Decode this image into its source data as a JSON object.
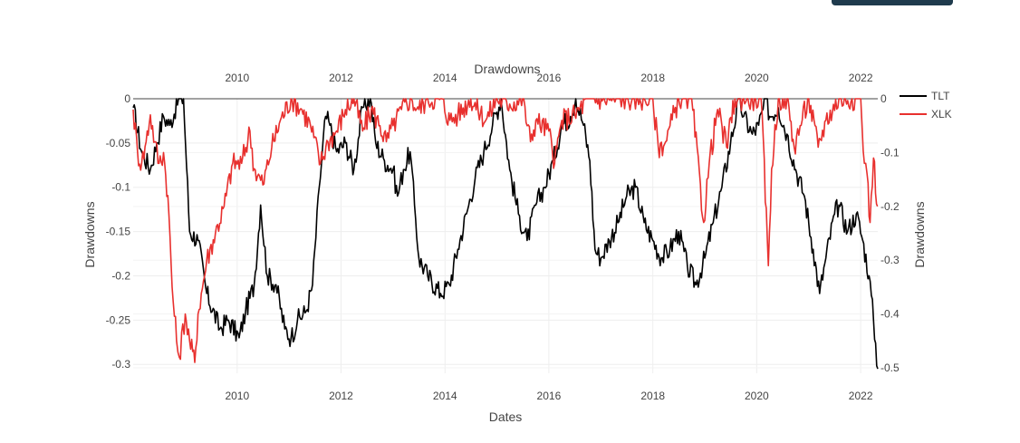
{
  "top_button": {
    "label": ""
  },
  "chart_data": {
    "type": "line",
    "title": "Drawdowns",
    "xlabel": "Dates",
    "ylabel_left": "Drawdowns",
    "ylabel_right": "Drawdowns",
    "xlim": [
      "2008-01-01",
      "2022-05-01"
    ],
    "ylim_left": [
      -0.31,
      0
    ],
    "ylim_right": [
      -0.51,
      0
    ],
    "x_ticks": [
      "2010",
      "2012",
      "2014",
      "2016",
      "2018",
      "2020",
      "2022"
    ],
    "x_tick_dates": [
      "2010-01-01",
      "2012-01-01",
      "2014-01-01",
      "2016-01-01",
      "2018-01-01",
      "2020-01-01",
      "2022-01-01"
    ],
    "y_left_ticks": [
      "0",
      "-0.05",
      "-0.1",
      "-0.15",
      "-0.2",
      "-0.25",
      "-0.3"
    ],
    "y_left_values": [
      0,
      -0.05,
      -0.1,
      -0.15,
      -0.2,
      -0.25,
      -0.3
    ],
    "y_right_ticks": [
      "0",
      "-0.1",
      "-0.2",
      "-0.3",
      "-0.4",
      "-0.5"
    ],
    "y_right_values": [
      0,
      -0.1,
      -0.2,
      -0.3,
      -0.4,
      -0.5
    ],
    "grid": true,
    "legend_position": "top-right",
    "series": [
      {
        "name": "TLT",
        "color": "#000000",
        "axis": "left",
        "x": [
          "2008-01-01",
          "2008-03-01",
          "2008-05-01",
          "2008-06-15",
          "2008-08-01",
          "2008-09-15",
          "2008-11-15",
          "2008-12-20",
          "2009-02-01",
          "2009-04-01",
          "2009-06-01",
          "2009-09-01",
          "2009-11-01",
          "2010-01-15",
          "2010-03-01",
          "2010-05-01",
          "2010-06-15",
          "2010-08-01",
          "2010-10-01",
          "2010-12-01",
          "2011-01-15",
          "2011-03-01",
          "2011-05-01",
          "2011-06-15",
          "2011-08-01",
          "2011-09-15",
          "2011-10-15",
          "2011-12-01",
          "2012-02-01",
          "2012-04-01",
          "2012-06-01",
          "2012-07-25",
          "2012-09-01",
          "2012-11-01",
          "2013-01-01",
          "2013-02-01",
          "2013-03-15",
          "2013-05-01",
          "2013-06-01",
          "2013-07-01",
          "2013-09-01",
          "2013-12-01",
          "2014-02-01",
          "2014-04-01",
          "2014-06-01",
          "2014-08-01",
          "2014-10-01",
          "2014-12-01",
          "2015-01-30",
          "2015-04-01",
          "2015-06-01",
          "2015-08-01",
          "2015-10-01",
          "2015-12-01",
          "2016-02-01",
          "2016-04-01",
          "2016-06-01",
          "2016-07-08",
          "2016-09-01",
          "2016-10-15",
          "2016-11-20",
          "2017-01-01",
          "2017-03-01",
          "2017-05-01",
          "2017-07-01",
          "2017-09-01",
          "2017-11-01",
          "2018-01-01",
          "2018-03-01",
          "2018-05-01",
          "2018-07-01",
          "2018-09-01",
          "2018-11-01",
          "2019-01-01",
          "2019-03-01",
          "2019-05-01",
          "2019-07-01",
          "2019-08-30",
          "2019-10-01",
          "2019-12-01",
          "2020-01-15",
          "2020-03-09",
          "2020-04-01",
          "2020-06-01",
          "2020-08-01",
          "2020-10-01",
          "2020-12-01",
          "2021-02-01",
          "2021-03-18",
          "2021-05-01",
          "2021-07-01",
          "2021-08-01",
          "2021-10-01",
          "2021-12-01",
          "2022-01-15",
          "2022-03-01",
          "2022-04-01",
          "2022-05-01"
        ],
        "y": [
          -0.01,
          -0.06,
          -0.08,
          -0.05,
          -0.02,
          -0.03,
          0,
          0,
          -0.15,
          -0.16,
          -0.22,
          -0.26,
          -0.25,
          -0.27,
          -0.24,
          -0.21,
          -0.12,
          -0.2,
          -0.21,
          -0.26,
          -0.27,
          -0.25,
          -0.24,
          -0.21,
          -0.1,
          -0.02,
          -0.03,
          -0.06,
          -0.05,
          -0.08,
          -0.01,
          0,
          -0.05,
          -0.07,
          -0.08,
          -0.11,
          -0.08,
          -0.06,
          -0.12,
          -0.18,
          -0.2,
          -0.22,
          -0.21,
          -0.17,
          -0.13,
          -0.09,
          -0.06,
          -0.03,
          0,
          -0.08,
          -0.13,
          -0.16,
          -0.12,
          -0.1,
          -0.07,
          -0.03,
          -0.02,
          0,
          -0.03,
          -0.07,
          -0.17,
          -0.18,
          -0.16,
          -0.14,
          -0.11,
          -0.1,
          -0.14,
          -0.16,
          -0.18,
          -0.17,
          -0.15,
          -0.19,
          -0.21,
          -0.18,
          -0.14,
          -0.1,
          -0.05,
          0,
          -0.02,
          -0.04,
          -0.03,
          0,
          -0.02,
          -0.01,
          -0.04,
          -0.08,
          -0.11,
          -0.17,
          -0.22,
          -0.18,
          -0.13,
          -0.12,
          -0.15,
          -0.13,
          -0.16,
          -0.2,
          -0.25,
          -0.305
        ]
      },
      {
        "name": "XLK",
        "color": "#e8302e",
        "axis": "right",
        "x": [
          "2008-01-01",
          "2008-02-01",
          "2008-03-01",
          "2008-04-01",
          "2008-05-01",
          "2008-06-01",
          "2008-07-01",
          "2008-08-01",
          "2008-09-01",
          "2008-10-01",
          "2008-11-01",
          "2008-11-20",
          "2009-01-01",
          "2009-02-01",
          "2009-03-09",
          "2009-04-01",
          "2009-06-01",
          "2009-08-01",
          "2009-10-01",
          "2009-12-01",
          "2010-02-01",
          "2010-04-01",
          "2010-05-01",
          "2010-07-01",
          "2010-09-01",
          "2010-11-01",
          "2011-01-15",
          "2011-04-01",
          "2011-06-01",
          "2011-08-10",
          "2011-10-01",
          "2011-12-01",
          "2012-02-01",
          "2012-04-01",
          "2012-06-01",
          "2012-08-01",
          "2012-10-01",
          "2012-11-15",
          "2013-01-01",
          "2013-03-01",
          "2013-05-01",
          "2013-07-01",
          "2013-09-01",
          "2013-12-01",
          "2014-02-05",
          "2014-04-01",
          "2014-07-01",
          "2014-10-15",
          "2015-01-01",
          "2015-04-01",
          "2015-07-01",
          "2015-08-25",
          "2015-10-01",
          "2016-01-01",
          "2016-02-11",
          "2016-04-01",
          "2016-07-01",
          "2016-10-01",
          "2017-01-01",
          "2017-06-01",
          "2017-10-01",
          "2018-01-01",
          "2018-02-08",
          "2018-04-01",
          "2018-07-01",
          "2018-10-01",
          "2018-12-24",
          "2019-02-01",
          "2019-04-01",
          "2019-06-03",
          "2019-08-01",
          "2019-10-01",
          "2019-12-01",
          "2020-02-01",
          "2020-03-23",
          "2020-04-15",
          "2020-06-01",
          "2020-08-01",
          "2020-09-20",
          "2020-11-01",
          "2021-01-01",
          "2021-03-08",
          "2021-05-01",
          "2021-08-01",
          "2021-11-01",
          "2021-12-15",
          "2022-01-01",
          "2022-01-27",
          "2022-02-15",
          "2022-03-08",
          "2022-04-01",
          "2022-04-29"
        ],
        "y": [
          -0.02,
          -0.1,
          -0.12,
          -0.08,
          -0.03,
          -0.08,
          -0.12,
          -0.1,
          -0.18,
          -0.35,
          -0.45,
          -0.48,
          -0.4,
          -0.45,
          -0.49,
          -0.4,
          -0.3,
          -0.25,
          -0.2,
          -0.12,
          -0.12,
          -0.06,
          -0.13,
          -0.16,
          -0.09,
          -0.04,
          0,
          -0.02,
          -0.05,
          -0.12,
          -0.08,
          -0.06,
          -0.02,
          0,
          -0.06,
          -0.02,
          -0.05,
          -0.08,
          -0.05,
          -0.02,
          0,
          -0.02,
          0,
          0,
          -0.04,
          -0.03,
          0,
          -0.04,
          0,
          -0.01,
          0,
          -0.08,
          -0.04,
          -0.06,
          -0.12,
          -0.04,
          -0.03,
          0,
          0,
          0,
          0,
          0,
          -0.09,
          -0.08,
          0,
          0,
          -0.23,
          -0.12,
          -0.02,
          -0.09,
          0,
          0,
          0,
          0,
          -0.31,
          -0.13,
          0,
          0,
          -0.09,
          -0.05,
          0,
          -0.09,
          -0.04,
          0,
          0,
          0,
          0,
          -0.12,
          -0.14,
          -0.23,
          -0.11,
          -0.2
        ]
      }
    ]
  }
}
